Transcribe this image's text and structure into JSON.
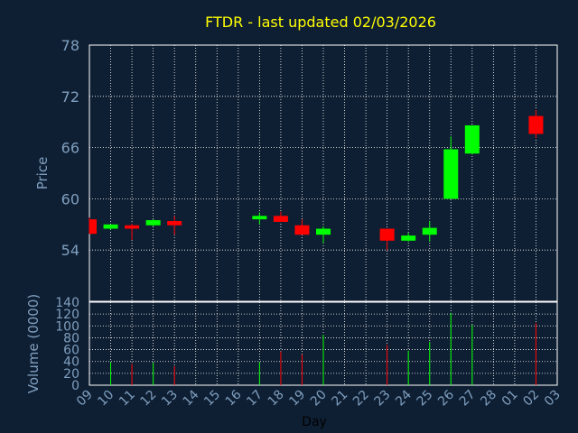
{
  "chart_data": {
    "type": "candlestick",
    "title": "FTDR - last updated 02/03/2026",
    "ylabel_price": "Price",
    "ylabel_volume": "Volume (0000)",
    "xlabel": "Day",
    "price_ylim": [
      48,
      78
    ],
    "price_yticks": [
      78,
      72,
      66,
      60,
      54
    ],
    "volume_ylim": [
      0,
      140
    ],
    "volume_yticks": [
      140,
      120,
      100,
      80,
      60,
      40,
      20,
      0
    ],
    "x_tick_labels": [
      "09",
      "10",
      "11",
      "12",
      "13",
      "14",
      "15",
      "16",
      "17",
      "18",
      "19",
      "20",
      "21",
      "22",
      "23",
      "24",
      "25",
      "26",
      "27",
      "28",
      "01",
      "02",
      "03"
    ],
    "grid": true,
    "colors": {
      "up": "#00ff00",
      "down": "#ff0000",
      "title": "#ffff00",
      "axis_text": "#7f9fbf",
      "background": "#0f1f33"
    },
    "candles": [
      {
        "day": "09",
        "open": 57.6,
        "high": 57.8,
        "low": 55.9,
        "close": 55.9,
        "volume": 0
      },
      {
        "day": "10",
        "open": 56.5,
        "high": 57.0,
        "low": 56.4,
        "close": 57.0,
        "volume": 39
      },
      {
        "day": "11",
        "open": 56.9,
        "high": 57.1,
        "low": 55.2,
        "close": 56.5,
        "volume": 36
      },
      {
        "day": "12",
        "open": 56.9,
        "high": 57.6,
        "low": 56.8,
        "close": 57.5,
        "volume": 38
      },
      {
        "day": "13",
        "open": 57.4,
        "high": 58.0,
        "low": 55.8,
        "close": 56.9,
        "volume": 32
      },
      {
        "day": "17",
        "open": 57.6,
        "high": 58.4,
        "low": 57.0,
        "close": 58.0,
        "volume": 39
      },
      {
        "day": "18",
        "open": 58.0,
        "high": 58.5,
        "low": 57.3,
        "close": 57.3,
        "volume": 57
      },
      {
        "day": "19",
        "open": 56.9,
        "high": 57.6,
        "low": 55.8,
        "close": 55.8,
        "volume": 52
      },
      {
        "day": "20",
        "open": 55.8,
        "high": 56.8,
        "low": 54.8,
        "close": 56.5,
        "volume": 85
      },
      {
        "day": "23",
        "open": 56.5,
        "high": 56.5,
        "low": 54.0,
        "close": 55.1,
        "volume": 68
      },
      {
        "day": "24",
        "open": 55.1,
        "high": 56.0,
        "low": 55.0,
        "close": 55.7,
        "volume": 58
      },
      {
        "day": "25",
        "open": 55.8,
        "high": 57.4,
        "low": 55.0,
        "close": 56.6,
        "volume": 73
      },
      {
        "day": "26",
        "open": 60.0,
        "high": 67.3,
        "low": 60.0,
        "close": 65.8,
        "volume": 122
      },
      {
        "day": "27",
        "open": 65.3,
        "high": 68.6,
        "low": 65.2,
        "close": 68.6,
        "volume": 102
      },
      {
        "day": "02",
        "open": 69.7,
        "high": 70.4,
        "low": 67.1,
        "close": 67.6,
        "volume": 105
      }
    ]
  }
}
